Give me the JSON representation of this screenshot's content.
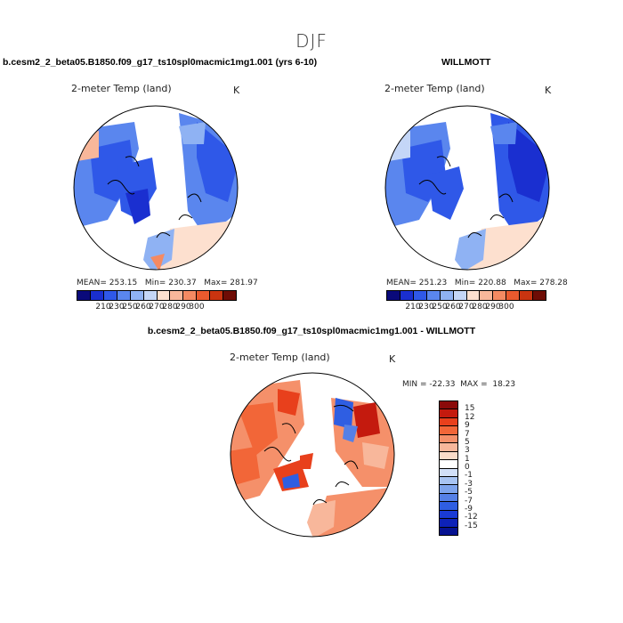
{
  "figure": {
    "title": "DJF"
  },
  "panels": {
    "model": {
      "run_title": "b.cesm2_2_beta05.B1850.f09_g17_ts10spl0macmic1mg1.001 (yrs 6-10)",
      "var_label": "2-meter Temp (land)",
      "units": "K",
      "stats": "MEAN= 253.15   Min= 230.37   Max= 281.97"
    },
    "obs": {
      "run_title": "WILLMOTT",
      "var_label": "2-meter Temp (land)",
      "units": "K",
      "stats": "MEAN= 251.23   Min= 220.88   Max= 278.28"
    },
    "diff": {
      "run_title": "b.cesm2_2_beta05.B1850.f09_g17_ts10spl0macmic1mg1.001 - WILLMOTT",
      "var_label": "2-meter Temp (land)",
      "units": "K",
      "stats": "MIN = -22.33  MAX =  18.23"
    }
  },
  "abs_colorbar": {
    "colors": [
      "#0a0a7a",
      "#1a2fd0",
      "#2f58e8",
      "#5a86ee",
      "#8fb2f3",
      "#c4d6f7",
      "#fde0cf",
      "#f8b79a",
      "#f48a62",
      "#ea5a2e",
      "#c93410",
      "#6e0c05"
    ],
    "tick_labels": [
      "210",
      "230",
      "250",
      "260",
      "270",
      "280",
      "290",
      "300"
    ]
  },
  "diff_colorbar": {
    "colors": [
      "#8b0a0a",
      "#c41a0e",
      "#e8401c",
      "#f26638",
      "#f5906a",
      "#f8b79b",
      "#fbdcc9",
      "#ffffff",
      "#d2e0f8",
      "#a8c4f2",
      "#7ea4ec",
      "#5580e6",
      "#2f5ee2",
      "#1a3bd6",
      "#0d22b8",
      "#061291"
    ],
    "tick_labels": [
      "15",
      "12",
      "9",
      "7",
      "5",
      "3",
      "1",
      "0",
      "-1",
      "-3",
      "-5",
      "-7",
      "-9",
      "-12",
      "-15"
    ]
  }
}
